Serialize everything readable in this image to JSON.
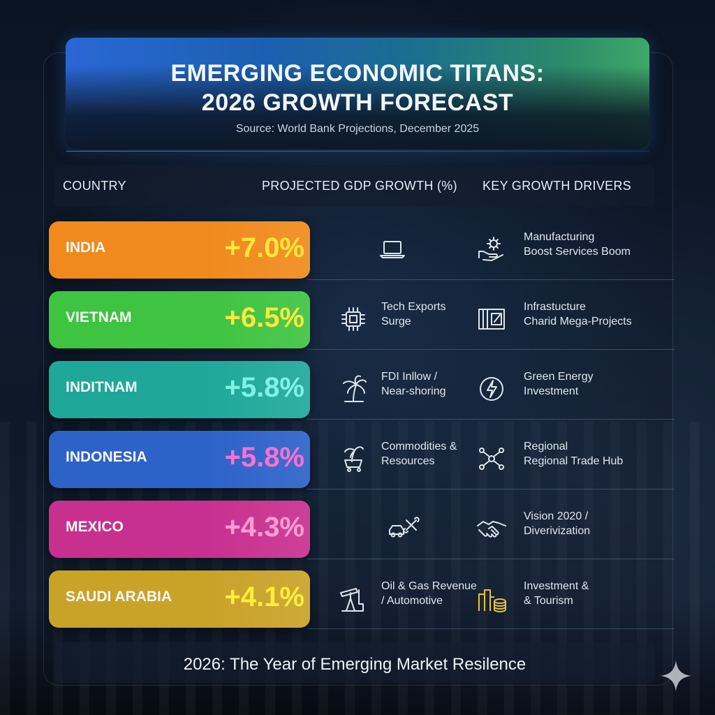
{
  "header": {
    "title_line1": "EMERGING ECONOMIC TITANS:",
    "title_line2": "2026 GROWTH FORECAST",
    "source": "Source: World Bank Projections, December 2025"
  },
  "columns": {
    "country": "COUNTRY",
    "growth": "PROJECTED GDP GROWTH (%)",
    "drivers": "KEY GROWTH DRIVERS"
  },
  "chart_data": {
    "type": "table",
    "title": "EMERGING ECONOMIC TITANS: 2026 GROWTH FORECAST",
    "rows": [
      {
        "country": "INDIA",
        "growth": "+7.0%",
        "value": 7.0,
        "color": "#f08a1c",
        "value_color": "#ffe83a",
        "driver1": "",
        "driver1_icon": "laptop-icon",
        "driver2": "Manufacturing\nBoost Services Boom",
        "driver2_icon": "gear-hand-icon"
      },
      {
        "country": "VIETNAM",
        "growth": "+6.5%",
        "value": 6.5,
        "color": "#3ec441",
        "value_color": "#ffe83a",
        "driver1": "Tech Exports\nSurge",
        "driver1_icon": "chip-icon",
        "driver2": "Infrastucture\nCharid Mega-Projects",
        "driver2_icon": "blueprint-icon"
      },
      {
        "country": "INDITNAM",
        "growth": "+5.8%",
        "value": 5.8,
        "color": "#1fa89a",
        "value_color": "#7ff2e6",
        "driver1": "FDI Inllow /\nNear-shoring",
        "driver1_icon": "palm-tree-icon",
        "driver2": "Green Energy\nInvestment",
        "driver2_icon": "leaf-bolt-icon"
      },
      {
        "country": "INDONESIA",
        "growth": "+5.8%",
        "value": 5.8,
        "color": "#2d62c9",
        "value_color": "#ff6fd0",
        "driver1": "Commodities &\nResources",
        "driver1_icon": "palm-cart-icon",
        "driver2": "Regional\nRegional Trade Hub",
        "driver2_icon": "network-icon"
      },
      {
        "country": "MEXICO",
        "growth": "+4.3%",
        "value": 4.3,
        "color": "#c8308f",
        "value_color": "#ff9ed6",
        "driver1": "",
        "driver1_icon": "car-tools-icon",
        "driver2": "Vision 2020 /\nDiverivization",
        "driver2_icon": "handshake-icon"
      },
      {
        "country": "SAUDI ARABIA",
        "growth": "+4.1%",
        "value": 4.1,
        "color": "#c9a228",
        "value_color": "#ffee3a",
        "driver1": "Oil & Gas Revenue\n/ Automotive",
        "driver1_icon": "oil-pump-icon",
        "driver2": "Investment &\n& Tourism",
        "driver2_icon": "city-coins-icon"
      }
    ]
  },
  "footer": {
    "text": "2026: The Year of Emerging Market Resilence"
  },
  "colors": {
    "header_left": "#2a67d6",
    "header_right": "#3ea96a",
    "background": "#0e1a2b"
  }
}
